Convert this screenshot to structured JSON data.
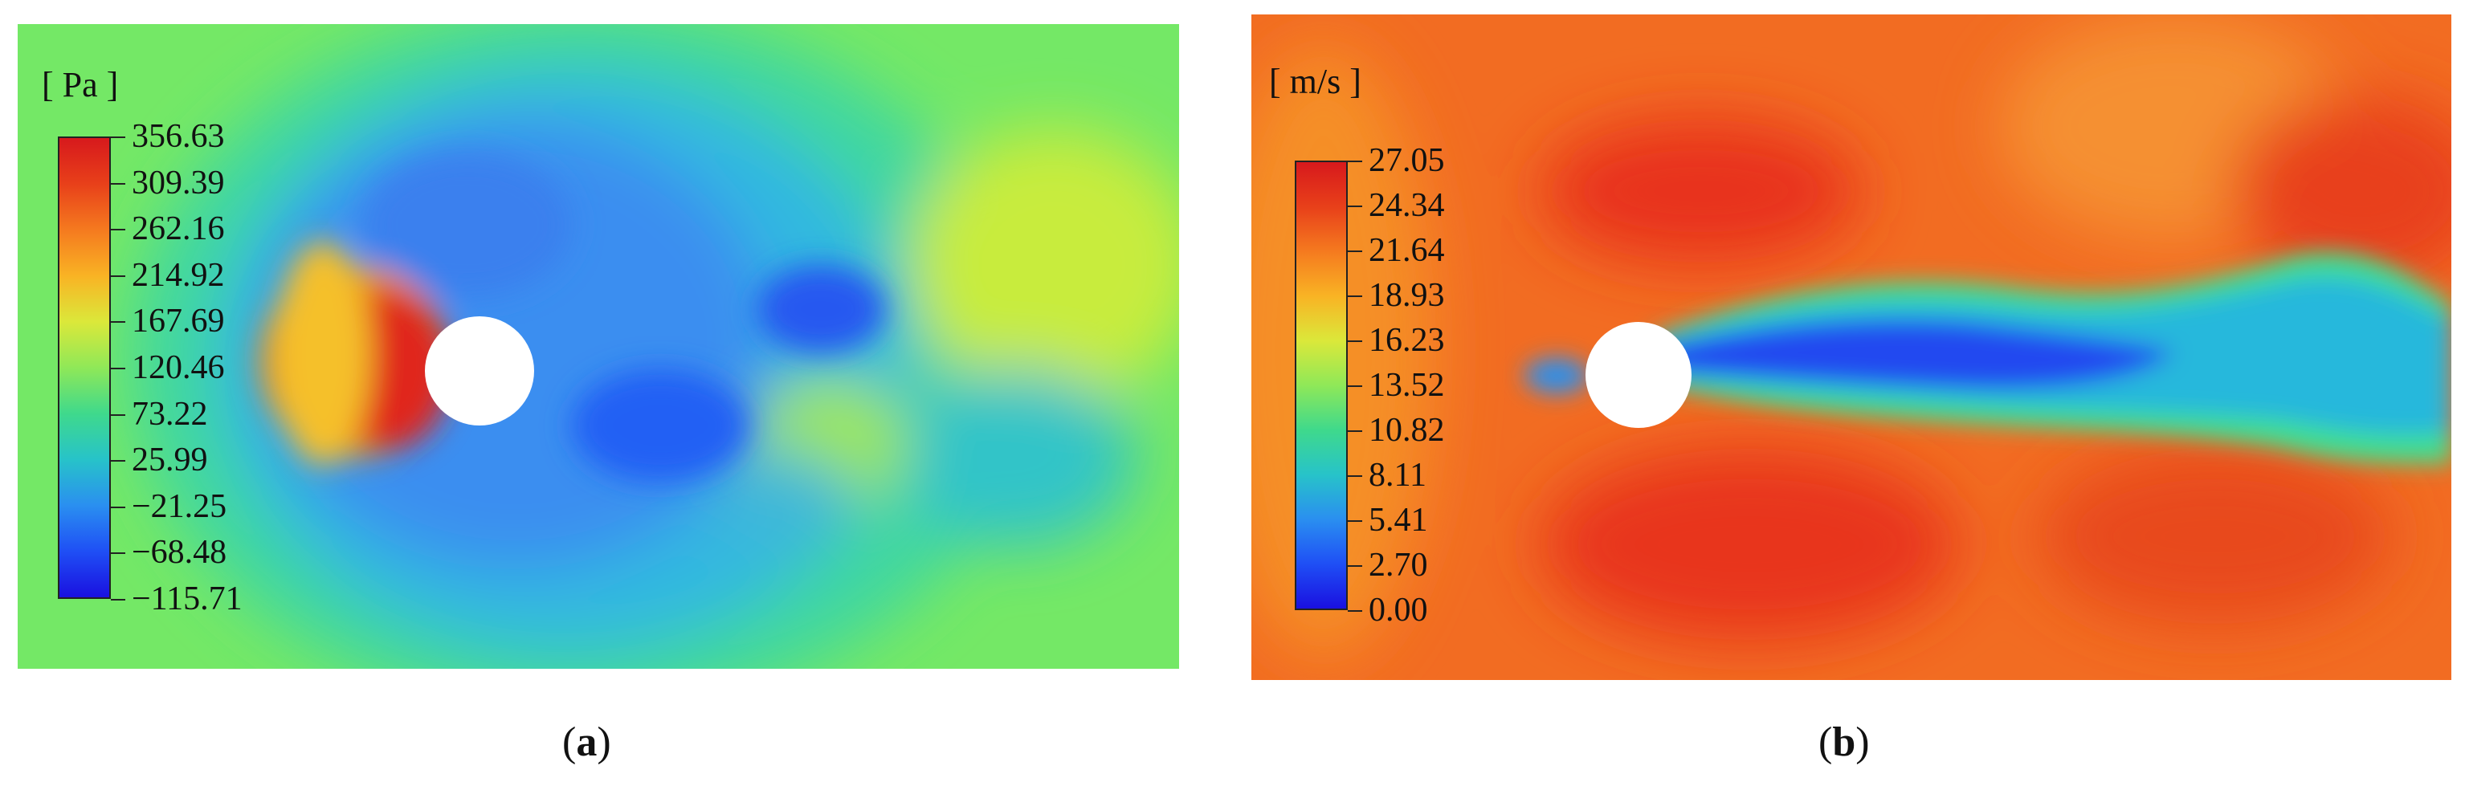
{
  "panels": [
    {
      "id": "a",
      "unit_label": "[ Pa ]",
      "colorbar_ticks": [
        "356.63",
        "309.39",
        "262.16",
        "214.92",
        "167.69",
        "120.46",
        "73.22",
        "25.99",
        "−21.25",
        "−68.48",
        "−115.71"
      ],
      "caption": {
        "open": "(",
        "letter": "a",
        "close": ")"
      }
    },
    {
      "id": "b",
      "unit_label": "[ m/s ]",
      "colorbar_ticks": [
        "27.05",
        "24.34",
        "21.64",
        "18.93",
        "16.23",
        "13.52",
        "10.82",
        "8.11",
        "5.41",
        "2.70",
        "0.00"
      ],
      "caption": {
        "open": "(",
        "letter": "b",
        "close": ")"
      }
    }
  ],
  "colormap": [
    "#d7191c",
    "#e8401a",
    "#f57a1f",
    "#f9b324",
    "#dbe83a",
    "#8fe858",
    "#3fd98c",
    "#27c3c9",
    "#2a8ff0",
    "#1f4ff5",
    "#1a10e0"
  ]
}
